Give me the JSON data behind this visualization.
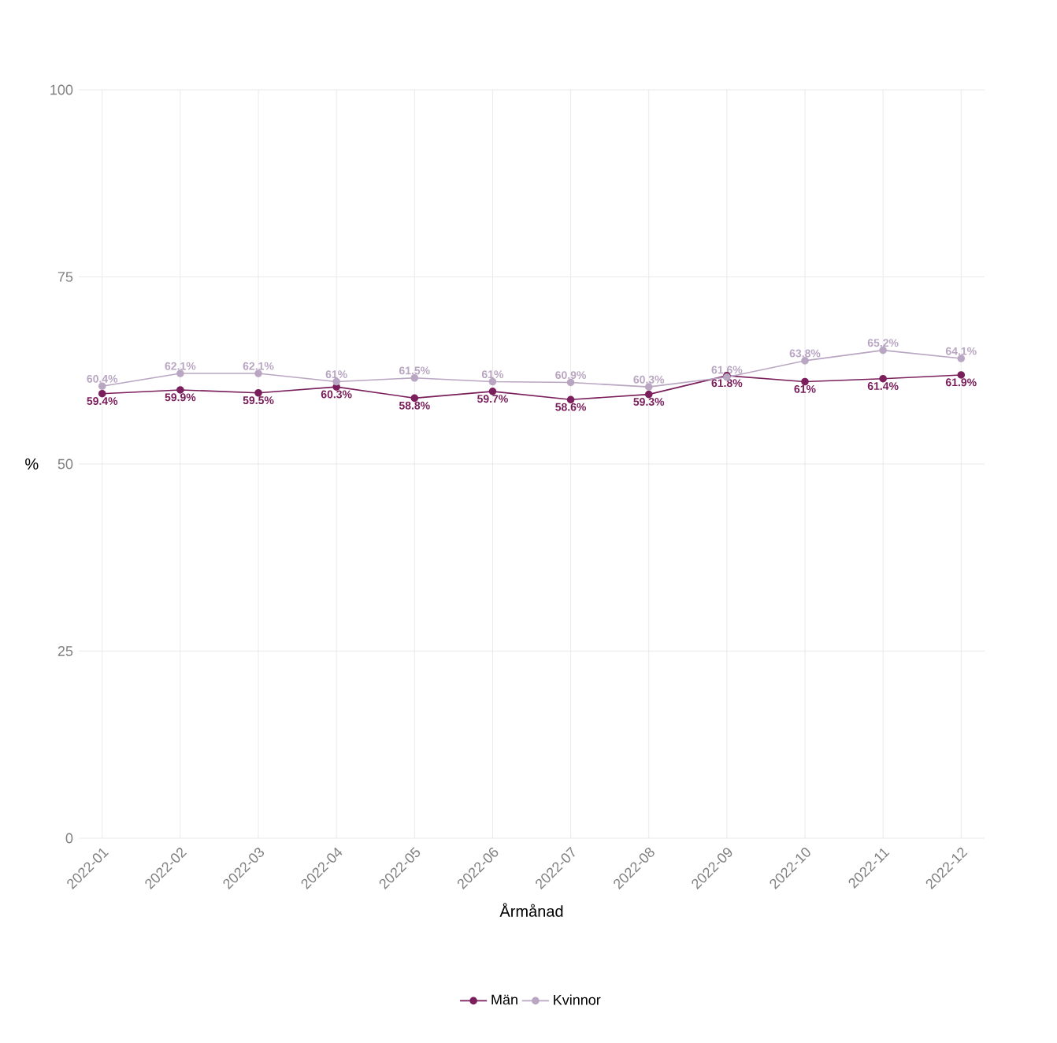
{
  "chart_data": {
    "type": "line",
    "xlabel": "Årmånad",
    "ylabel": "%",
    "categories": [
      "2022-01",
      "2022-02",
      "2022-03",
      "2022-04",
      "2022-05",
      "2022-06",
      "2022-07",
      "2022-08",
      "2022-09",
      "2022-10",
      "2022-11",
      "2022-12"
    ],
    "series": [
      {
        "name": "Män",
        "color": "#7a1f5c",
        "values": [
          59.4,
          59.9,
          59.5,
          60.3,
          58.8,
          59.7,
          58.6,
          59.3,
          61.8,
          61,
          61.4,
          61.9
        ],
        "value_labels": [
          "59.4%",
          "59.9%",
          "59.5%",
          "60.3%",
          "58.8%",
          "59.7%",
          "58.6%",
          "59.3%",
          "61.8%",
          "61%",
          "61.4%",
          "61.9%"
        ]
      },
      {
        "name": "Kvinnor",
        "color": "#b9a6c2",
        "values": [
          60.4,
          62.1,
          62.1,
          61.0,
          61.5,
          61.0,
          60.9,
          60.3,
          61.6,
          63.8,
          65.2,
          64.1
        ],
        "value_labels": [
          "60.4%",
          "62.1%",
          "62.1%",
          "61%",
          "61.5%",
          "61%",
          "60.9%",
          "60.3%",
          "61.6%",
          "63.8%",
          "65.2%",
          "64.1%"
        ]
      }
    ],
    "ylim": [
      0,
      100
    ],
    "yticks": [
      0,
      25,
      50,
      75,
      100
    ],
    "grid": true,
    "legend": "bottom",
    "marker": "circle"
  }
}
